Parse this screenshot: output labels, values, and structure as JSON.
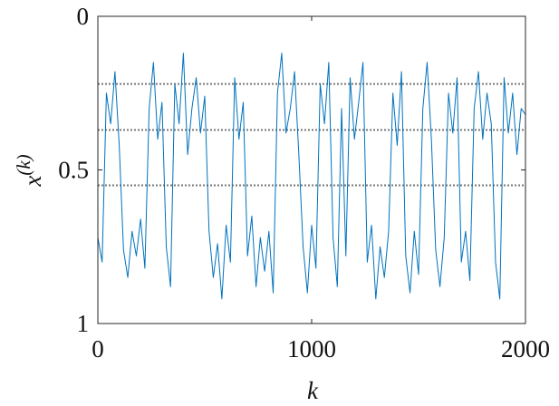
{
  "chart_data": {
    "type": "line",
    "xlabel": "k",
    "ylabel": {
      "base": "x",
      "sup": "(k)"
    },
    "x": [
      0,
      20,
      40,
      60,
      80,
      100,
      120,
      140,
      160,
      180,
      200,
      220,
      240,
      260,
      280,
      300,
      320,
      340,
      360,
      380,
      400,
      420,
      440,
      460,
      480,
      500,
      520,
      540,
      560,
      580,
      600,
      620,
      640,
      660,
      680,
      700,
      720,
      740,
      760,
      780,
      800,
      820,
      840,
      860,
      880,
      900,
      920,
      940,
      960,
      980,
      1000,
      1020,
      1040,
      1060,
      1080,
      1100,
      1120,
      1140,
      1160,
      1180,
      1200,
      1220,
      1240,
      1260,
      1280,
      1300,
      1320,
      1340,
      1360,
      1380,
      1400,
      1420,
      1440,
      1460,
      1480,
      1500,
      1520,
      1540,
      1560,
      1580,
      1600,
      1620,
      1640,
      1660,
      1680,
      1700,
      1720,
      1740,
      1760,
      1780,
      1800,
      1820,
      1840,
      1860,
      1880,
      1900,
      1920,
      1940,
      1960,
      1980,
      2000
    ],
    "series": [
      {
        "color": "#0072bd",
        "values": [
          0.72,
          0.8,
          0.25,
          0.35,
          0.18,
          0.42,
          0.76,
          0.85,
          0.7,
          0.78,
          0.66,
          0.82,
          0.3,
          0.15,
          0.4,
          0.28,
          0.75,
          0.88,
          0.22,
          0.35,
          0.12,
          0.45,
          0.3,
          0.2,
          0.38,
          0.26,
          0.7,
          0.85,
          0.74,
          0.92,
          0.68,
          0.8,
          0.2,
          0.4,
          0.28,
          0.78,
          0.65,
          0.88,
          0.72,
          0.83,
          0.7,
          0.9,
          0.25,
          0.12,
          0.38,
          0.3,
          0.18,
          0.45,
          0.75,
          0.9,
          0.68,
          0.82,
          0.22,
          0.35,
          0.15,
          0.72,
          0.88,
          0.3,
          0.78,
          0.2,
          0.4,
          0.28,
          0.15,
          0.8,
          0.68,
          0.92,
          0.75,
          0.85,
          0.7,
          0.25,
          0.42,
          0.18,
          0.78,
          0.9,
          0.7,
          0.84,
          0.3,
          0.15,
          0.4,
          0.76,
          0.88,
          0.72,
          0.25,
          0.38,
          0.2,
          0.8,
          0.7,
          0.86,
          0.3,
          0.18,
          0.4,
          0.25,
          0.35,
          0.8,
          0.92,
          0.2,
          0.38,
          0.25,
          0.45,
          0.3,
          0.32
        ]
      }
    ],
    "xlim": [
      0,
      2000
    ],
    "xticks": [
      0,
      1000,
      2000
    ],
    "ylim": [
      0,
      1
    ],
    "yticks": [
      0,
      0.5,
      1
    ],
    "y_reversed": true,
    "reference_lines": [
      0.22,
      0.37,
      0.55
    ],
    "reference_color": "#777777"
  }
}
